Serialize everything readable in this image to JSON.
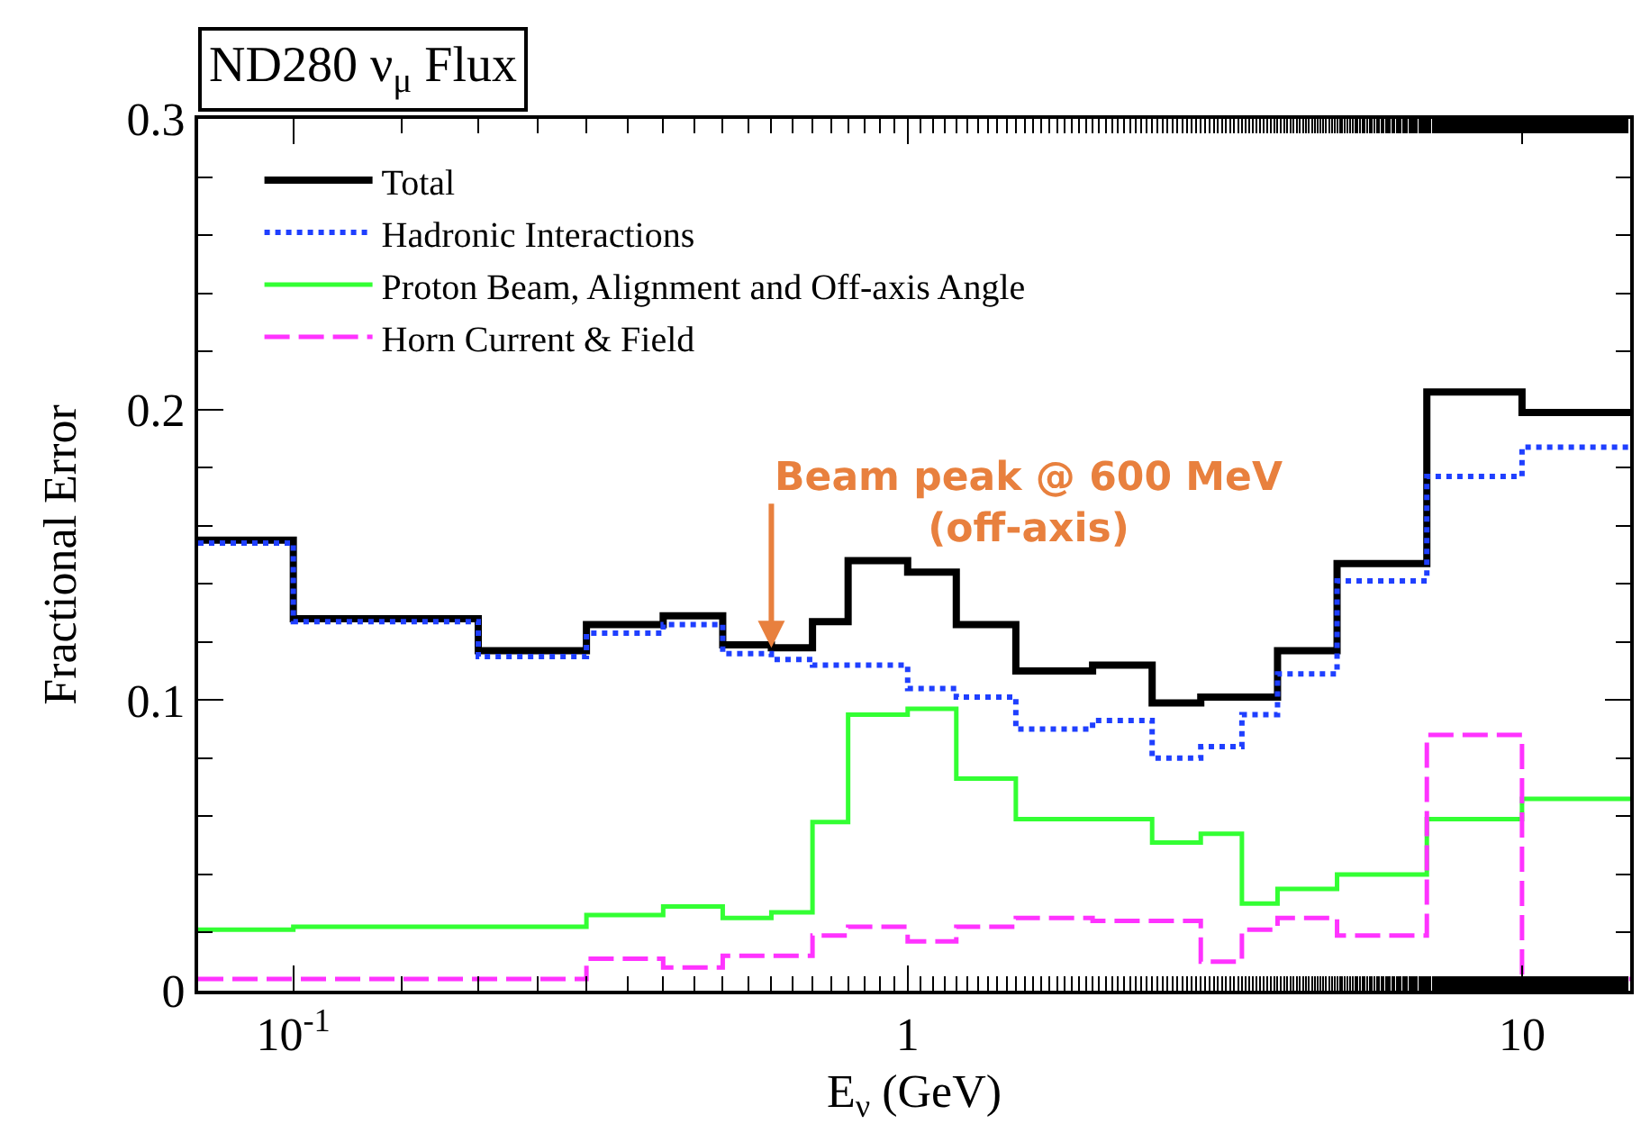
{
  "chart_data": {
    "type": "step",
    "title": "ND280 ν$_{μ}$ Flux",
    "xlabel": "E$_{ν}$ (GeV)",
    "ylabel": "Fractional Error",
    "log": "x",
    "xlim": [
      0.07,
      15
    ],
    "ylim": [
      0,
      0.3
    ],
    "xticks": [
      {
        "value": 0.1,
        "label": "10$^{-1}$"
      },
      1,
      10
    ],
    "yticks": [
      0,
      0.1,
      0.2,
      0.3
    ],
    "x": [
      0.07,
      0.1,
      0.2,
      0.3,
      0.4,
      0.5,
      0.6,
      0.7,
      0.8,
      1.0,
      1.2,
      1.5,
      2.0,
      2.5,
      3.0,
      3.5,
      4.0,
      5.0,
      7.0,
      10.0,
      15.0
    ],
    "legend": "top left",
    "series": [
      {
        "name": "Total",
        "color": "#000000",
        "line_style": "solid",
        "values": [
          0.155,
          0.128,
          0.117,
          0.126,
          0.129,
          0.119,
          0.118,
          0.127,
          0.148,
          0.144,
          0.126,
          0.11,
          0.112,
          0.099,
          0.101,
          0.101,
          0.117,
          0.147,
          0.206,
          0.199,
          0.199
        ]
      },
      {
        "name": "Hadronic Interactions",
        "color": "#1f3fff",
        "line_style": "dotted",
        "values": [
          0.154,
          0.127,
          0.115,
          0.123,
          0.126,
          0.116,
          0.114,
          0.112,
          0.112,
          0.104,
          0.101,
          0.09,
          0.093,
          0.08,
          0.084,
          0.095,
          0.109,
          0.141,
          0.177,
          0.187,
          0.187
        ]
      },
      {
        "name": "Proton Beam, Alignment and Off-axis Angle",
        "color": "#33ff33",
        "line_style": "solid",
        "values": [
          0.021,
          0.022,
          0.022,
          0.026,
          0.029,
          0.025,
          0.027,
          0.058,
          0.095,
          0.097,
          0.073,
          0.059,
          0.059,
          0.051,
          0.054,
          0.03,
          0.035,
          0.04,
          0.059,
          0.066,
          0.066
        ]
      },
      {
        "name": "Horn Current & Field",
        "color": "#ff33ff",
        "line_style": "dashed",
        "values": [
          0.004,
          0.004,
          0.004,
          0.011,
          0.008,
          0.012,
          0.012,
          0.019,
          0.022,
          0.017,
          0.022,
          0.025,
          0.024,
          0.024,
          0.01,
          0.021,
          0.025,
          0.019,
          0.088,
          0.004,
          0.004
        ]
      }
    ],
    "annotations": [
      {
        "text": "Beam peak @ 600 MeV\n(off-axis)",
        "x": 0.6,
        "y": 0.118
      }
    ]
  }
}
